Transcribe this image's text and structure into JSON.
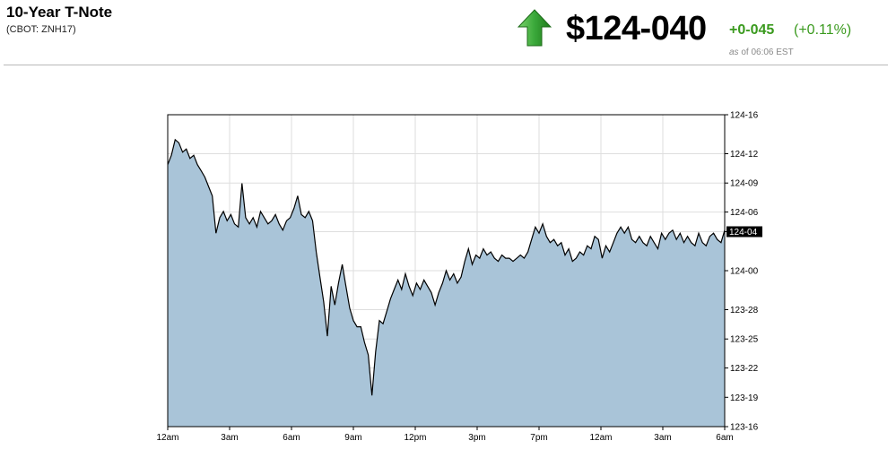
{
  "header": {
    "title": "10-Year T-Note",
    "subtitle": "(CBOT: ZNH17)",
    "price": "$124-040",
    "change": "+0-045",
    "change_pct": "(+0.11%)",
    "as_of_prefix": "as",
    "as_of_rest": "of 06:06 EST",
    "colors": {
      "up": "#3a9a1e",
      "arrow_light": "#5cc24a",
      "arrow_dark": "#1f7a1a"
    },
    "icon": "up-arrow-icon"
  },
  "chart_data": {
    "type": "area",
    "title": "",
    "xlabel": "",
    "ylabel": "",
    "x_ticks": [
      "12am",
      "3am",
      "6am",
      "9am",
      "12pm",
      "3pm",
      "7pm",
      "12am",
      "3am",
      "6am"
    ],
    "y_ticks": [
      "123-16",
      "123-19",
      "123-22",
      "123-25",
      "123-28",
      "124-00",
      "124-04",
      "124-06",
      "124-09",
      "124-12",
      "124-16"
    ],
    "y_ticks_value": [
      123.5,
      123.594,
      123.688,
      123.781,
      123.875,
      124.0,
      124.125,
      124.188,
      124.281,
      124.375,
      124.5
    ],
    "ylim": [
      123.5,
      124.5
    ],
    "last_value_label": "124-04",
    "last_value": 124.125,
    "grid": true,
    "fill_color": "#a9c4d8",
    "line_color": "#000000",
    "x_index": [
      0,
      2,
      4,
      6,
      8,
      10,
      12,
      14,
      16,
      18,
      20,
      22,
      24,
      26,
      28,
      30,
      32,
      34,
      36,
      38,
      40,
      42,
      44,
      46,
      48,
      50,
      52,
      54,
      56,
      58,
      60,
      62,
      64,
      66,
      68,
      70,
      72,
      74,
      76,
      78,
      80,
      82,
      84,
      86,
      88,
      90,
      92,
      94,
      96,
      98,
      100,
      102,
      104,
      106,
      108,
      110,
      112,
      114,
      116,
      118,
      120,
      122,
      124,
      126,
      128,
      130,
      132,
      134,
      136,
      138,
      140,
      142,
      144,
      146,
      148,
      150,
      152,
      154,
      156,
      158,
      160,
      162,
      164,
      166,
      168,
      170,
      172,
      174,
      176,
      178,
      180,
      182,
      184,
      186,
      188,
      190,
      192,
      194,
      196,
      198,
      200,
      202,
      204,
      206,
      208,
      210,
      212,
      214,
      216,
      218,
      220,
      222,
      224,
      226,
      228,
      230,
      232,
      234,
      236,
      238,
      240,
      242,
      244,
      246,
      248,
      250,
      252,
      254,
      256,
      258,
      260,
      262,
      264,
      266,
      268,
      270,
      272,
      274,
      276,
      278,
      280,
      282,
      284,
      286,
      288,
      290,
      292,
      294,
      296,
      298,
      300
    ],
    "values": [
      124.34,
      124.37,
      124.42,
      124.41,
      124.38,
      124.39,
      124.36,
      124.37,
      124.34,
      124.32,
      124.3,
      124.27,
      124.24,
      124.12,
      124.17,
      124.19,
      124.16,
      124.18,
      124.15,
      124.14,
      124.28,
      124.17,
      124.15,
      124.17,
      124.14,
      124.19,
      124.17,
      124.15,
      124.16,
      124.18,
      124.15,
      124.13,
      124.16,
      124.17,
      124.2,
      124.24,
      124.18,
      124.17,
      124.19,
      124.16,
      124.06,
      123.98,
      123.9,
      123.79,
      123.95,
      123.89,
      123.96,
      124.02,
      123.95,
      123.88,
      123.84,
      123.82,
      123.82,
      123.77,
      123.73,
      123.6,
      123.74,
      123.84,
      123.83,
      123.87,
      123.91,
      123.94,
      123.97,
      123.94,
      123.99,
      123.95,
      123.92,
      123.96,
      123.94,
      123.97,
      123.95,
      123.93,
      123.89,
      123.93,
      123.96,
      124.0,
      123.97,
      123.99,
      123.96,
      123.98,
      124.03,
      124.07,
      124.02,
      124.05,
      124.04,
      124.07,
      124.05,
      124.06,
      124.04,
      124.03,
      124.05,
      124.04,
      124.04,
      124.03,
      124.04,
      124.05,
      124.04,
      124.06,
      124.1,
      124.14,
      124.12,
      124.15,
      124.11,
      124.09,
      124.1,
      124.08,
      124.09,
      124.05,
      124.07,
      124.03,
      124.04,
      124.06,
      124.05,
      124.08,
      124.07,
      124.11,
      124.1,
      124.04,
      124.08,
      124.06,
      124.09,
      124.12,
      124.14,
      124.12,
      124.14,
      124.1,
      124.09,
      124.11,
      124.09,
      124.08,
      124.11,
      124.09,
      124.07,
      124.12,
      124.1,
      124.12,
      124.13,
      124.1,
      124.12,
      124.09,
      124.11,
      124.09,
      124.08,
      124.12,
      124.09,
      124.08,
      124.11,
      124.12,
      124.1,
      124.09,
      124.13
    ]
  }
}
